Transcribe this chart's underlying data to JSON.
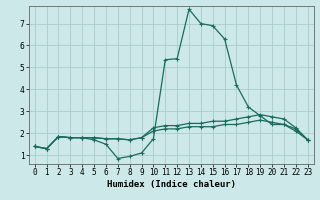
{
  "xlabel": "Humidex (Indice chaleur)",
  "bg_color": "#cce8e8",
  "grid_color": "#aacccc",
  "line_color": "#1a6b5e",
  "xlim": [
    -0.5,
    23.5
  ],
  "ylim": [
    0.6,
    7.8
  ],
  "xticks": [
    0,
    1,
    2,
    3,
    4,
    5,
    6,
    7,
    8,
    9,
    10,
    11,
    12,
    13,
    14,
    15,
    16,
    17,
    18,
    19,
    20,
    21,
    22,
    23
  ],
  "yticks": [
    1,
    2,
    3,
    4,
    5,
    6,
    7
  ],
  "series1_x": [
    0,
    1,
    2,
    3,
    4,
    5,
    6,
    7,
    8,
    9,
    10,
    11,
    12,
    13,
    14,
    15,
    16,
    17,
    18,
    19,
    20,
    21,
    22,
    23
  ],
  "series1_y": [
    1.4,
    1.3,
    1.85,
    1.8,
    1.8,
    1.7,
    1.5,
    0.85,
    0.95,
    1.1,
    1.75,
    5.35,
    5.4,
    7.65,
    7.0,
    6.9,
    6.3,
    4.2,
    3.2,
    2.8,
    2.4,
    2.4,
    2.1,
    1.7
  ],
  "series2_x": [
    0,
    1,
    2,
    3,
    4,
    5,
    6,
    7,
    8,
    9,
    10,
    11,
    12,
    13,
    14,
    15,
    16,
    17,
    18,
    19,
    20,
    21,
    22,
    23
  ],
  "series2_y": [
    1.4,
    1.3,
    1.85,
    1.8,
    1.8,
    1.8,
    1.75,
    1.75,
    1.7,
    1.8,
    2.1,
    2.2,
    2.2,
    2.3,
    2.3,
    2.3,
    2.4,
    2.4,
    2.5,
    2.6,
    2.5,
    2.4,
    2.2,
    1.7
  ],
  "series3_x": [
    0,
    1,
    2,
    3,
    4,
    5,
    6,
    7,
    8,
    9,
    10,
    11,
    12,
    13,
    14,
    15,
    16,
    17,
    18,
    19,
    20,
    21,
    22,
    23
  ],
  "series3_y": [
    1.4,
    1.3,
    1.85,
    1.8,
    1.8,
    1.8,
    1.75,
    1.75,
    1.7,
    1.8,
    2.25,
    2.35,
    2.35,
    2.45,
    2.45,
    2.55,
    2.55,
    2.65,
    2.75,
    2.85,
    2.75,
    2.65,
    2.25,
    1.7
  ],
  "marker": "+",
  "markersize": 3,
  "linewidth": 0.9,
  "tick_fontsize": 5.5,
  "xlabel_fontsize": 6.5
}
